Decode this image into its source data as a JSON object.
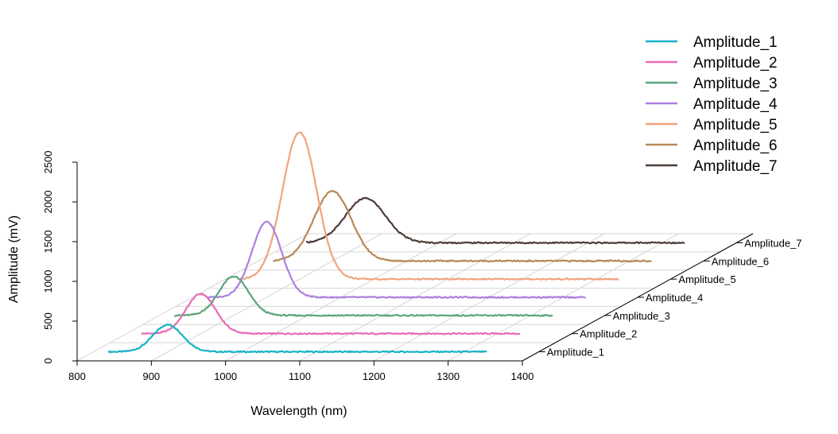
{
  "chart_data": {
    "type": "line",
    "xlabel": "Wavelength (nm)",
    "ylabel": "Amplitude (mV)",
    "xlim": [
      800,
      1400
    ],
    "ylim": [
      0,
      2500
    ],
    "x_ticks": [
      "800",
      "900",
      "1000",
      "1100",
      "1200",
      "1300",
      "1400"
    ],
    "y_ticks": [
      "0",
      "500",
      "1000",
      "1500",
      "2000",
      "2500"
    ],
    "depth_labels": [
      "Amplitude_1",
      "Amplitude_2",
      "Amplitude_3",
      "Amplitude_4",
      "Amplitude_5",
      "Amplitude_6",
      "Amplitude_7"
    ],
    "legend_position": "top-right",
    "series": [
      {
        "name": "Amplitude_1",
        "color": "#17b3c4",
        "x_start": 820,
        "x_end": 1330,
        "peak_x": 900,
        "peak_height": 340,
        "width": 20
      },
      {
        "name": "Amplitude_2",
        "color": "#e86bb5",
        "x_start": 820,
        "x_end": 1330,
        "peak_x": 900,
        "peak_height": 500,
        "width": 20
      },
      {
        "name": "Amplitude_3",
        "color": "#5aa57a",
        "x_start": 820,
        "x_end": 1330,
        "peak_x": 900,
        "peak_height": 490,
        "width": 20
      },
      {
        "name": "Amplitude_4",
        "color": "#ab80de",
        "x_start": 820,
        "x_end": 1330,
        "peak_x": 900,
        "peak_height": 950,
        "width": 20
      },
      {
        "name": "Amplitude_5",
        "color": "#f0a47d",
        "x_start": 820,
        "x_end": 1330,
        "peak_x": 900,
        "peak_height": 1850,
        "width": 23
      },
      {
        "name": "Amplitude_6",
        "color": "#b88756",
        "x_start": 820,
        "x_end": 1330,
        "peak_x": 900,
        "peak_height": 880,
        "width": 25
      },
      {
        "name": "Amplitude_7",
        "color": "#4d3c38",
        "x_start": 820,
        "x_end": 1330,
        "peak_x": 900,
        "peak_height": 560,
        "width": 27
      }
    ]
  }
}
